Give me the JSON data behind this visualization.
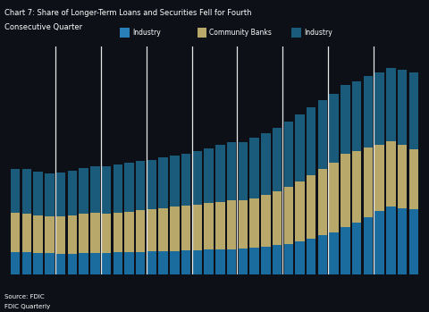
{
  "background_color": "#0d1117",
  "bar_color_blue": "#1a6b9e",
  "bar_color_tan": "#b8a96a",
  "bar_color_dark_blue": "#1a5a7a",
  "title_line1": "Chart 7: Share of Longer-Term Loans and Securities Fell for Fourth",
  "title_line2": "Consecutive Quarter",
  "legend_labels": [
    "Industry",
    "Community Banks",
    "Industry"
  ],
  "legend_colors": [
    "#2980b9",
    "#b8a96a",
    "#1a5a7a"
  ],
  "n_bars": 36,
  "bottom_blue": [
    7.0,
    6.8,
    6.7,
    6.5,
    6.3,
    6.4,
    6.5,
    6.6,
    6.7,
    6.8,
    6.9,
    7.0,
    7.1,
    7.2,
    7.3,
    7.4,
    7.5,
    7.6,
    7.7,
    7.8,
    8.0,
    8.3,
    8.6,
    9.0,
    9.5,
    10.2,
    11.0,
    12.0,
    13.0,
    14.5,
    16.0,
    17.5,
    19.5,
    21.0,
    20.5,
    20.0
  ],
  "middle_tan": [
    12.0,
    11.8,
    11.5,
    11.3,
    11.5,
    11.8,
    12.2,
    12.5,
    12.0,
    12.2,
    12.5,
    12.8,
    13.0,
    13.2,
    13.5,
    13.8,
    14.0,
    14.3,
    14.6,
    15.0,
    14.8,
    15.2,
    15.8,
    16.5,
    17.5,
    18.5,
    19.5,
    20.5,
    21.5,
    22.5,
    22.0,
    21.5,
    20.5,
    20.0,
    19.5,
    18.5
  ],
  "top_blue": [
    13.5,
    13.8,
    13.5,
    13.2,
    13.5,
    13.8,
    14.0,
    14.2,
    14.5,
    14.8,
    15.0,
    15.0,
    15.2,
    15.5,
    15.8,
    16.0,
    16.5,
    17.0,
    17.5,
    17.8,
    18.0,
    18.5,
    19.0,
    19.5,
    20.0,
    20.5,
    20.8,
    21.0,
    21.0,
    21.2,
    21.5,
    22.0,
    22.0,
    22.5,
    23.0,
    23.5
  ],
  "ylim_max": 70,
  "divider_positions": [
    4,
    8,
    12,
    16,
    20,
    24,
    28,
    32
  ],
  "source_text": "Source: FDIC",
  "note_text": "FDIC Quarterly"
}
